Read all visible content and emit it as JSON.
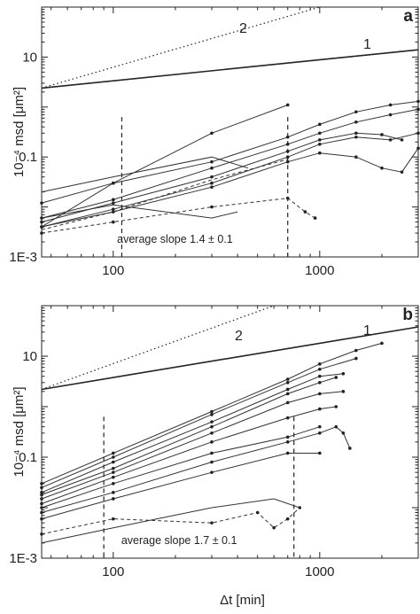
{
  "chart_data": [
    {
      "type": "line",
      "panel_label": "a",
      "title": "",
      "xlabel": "",
      "ylabel": "10⁻⁴ msd [μm²]",
      "x_scale": "log",
      "y_scale": "log",
      "xlim": [
        45,
        3000
      ],
      "ylim": [
        0.001,
        100
      ],
      "x_ticks": [
        {
          "value": 100,
          "label": "100"
        },
        {
          "value": 1000,
          "label": "1000"
        }
      ],
      "y_ticks": [
        {
          "value": 0.001,
          "label": "1E-3"
        },
        {
          "value": 0.1,
          "label": "0.1"
        },
        {
          "value": 10,
          "label": "10"
        }
      ],
      "reference_lines": [
        {
          "label": "1",
          "style": "solid",
          "points": [
            [
              45,
              2.4
            ],
            [
              3000,
              14
            ]
          ]
        },
        {
          "label": "2",
          "style": "dotted",
          "points": [
            [
              45,
              2.4
            ],
            [
              1000,
              100
            ]
          ]
        }
      ],
      "vertical_markers": [
        110,
        700
      ],
      "annotation": "average slope 1.4 ± 0.1",
      "series": [
        {
          "style": "solid",
          "marker": "dot",
          "points": [
            [
              45,
              0.004
            ],
            [
              100,
              0.03
            ],
            [
              300,
              0.3
            ],
            [
              700,
              1.1
            ]
          ]
        },
        {
          "style": "solid",
          "marker": "dot",
          "points": [
            [
              45,
              0.012
            ],
            [
              100,
              0.03
            ],
            [
              300,
              0.08
            ],
            [
              700,
              0.25
            ],
            [
              1000,
              0.45
            ],
            [
              1500,
              0.8
            ],
            [
              2200,
              1.1
            ],
            [
              3000,
              1.3
            ]
          ]
        },
        {
          "style": "solid",
          "marker": "dot",
          "points": [
            [
              45,
              0.006
            ],
            [
              100,
              0.014
            ],
            [
              300,
              0.06
            ],
            [
              700,
              0.18
            ],
            [
              1000,
              0.3
            ],
            [
              1500,
              0.5
            ],
            [
              2200,
              0.7
            ],
            [
              3000,
              0.9
            ]
          ]
        },
        {
          "style": "solid",
          "marker": "dot",
          "points": [
            [
              45,
              0.005
            ],
            [
              100,
              0.012
            ],
            [
              300,
              0.04
            ],
            [
              700,
              0.13
            ],
            [
              1000,
              0.22
            ],
            [
              1500,
              0.3
            ],
            [
              2000,
              0.28
            ],
            [
              2500,
              0.22
            ]
          ]
        },
        {
          "style": "solid",
          "marker": "dot",
          "points": [
            [
              45,
              0.004
            ],
            [
              100,
              0.009
            ],
            [
              300,
              0.03
            ],
            [
              700,
              0.1
            ],
            [
              1000,
              0.18
            ],
            [
              1500,
              0.25
            ],
            [
              2200,
              0.22
            ],
            [
              3000,
              0.3
            ]
          ]
        },
        {
          "style": "solid",
          "marker": "dot",
          "points": [
            [
              45,
              0.004
            ],
            [
              100,
              0.008
            ],
            [
              300,
              0.025
            ],
            [
              700,
              0.08
            ],
            [
              1000,
              0.12
            ],
            [
              1500,
              0.1
            ],
            [
              2000,
              0.06
            ],
            [
              2500,
              0.05
            ],
            [
              3000,
              0.15
            ]
          ]
        },
        {
          "style": "solid",
          "marker": "none",
          "points": [
            [
              45,
              0.02
            ],
            [
              100,
              0.04
            ],
            [
              300,
              0.1
            ],
            [
              450,
              0.06
            ]
          ]
        },
        {
          "style": "solid",
          "marker": "none",
          "points": [
            [
              45,
              0.006
            ],
            [
              100,
              0.011
            ],
            [
              300,
              0.006
            ],
            [
              400,
              0.008
            ]
          ]
        },
        {
          "style": "dashed",
          "marker": "dot",
          "points": [
            [
              45,
              0.003
            ],
            [
              100,
              0.005
            ],
            [
              300,
              0.01
            ],
            [
              700,
              0.015
            ],
            [
              850,
              0.008
            ],
            [
              950,
              0.006
            ]
          ]
        },
        {
          "style": "dashed",
          "marker": "none",
          "points": [
            [
              45,
              0.0035
            ],
            [
              100,
              0.008
            ],
            [
              300,
              0.035
            ],
            [
              700,
              0.09
            ]
          ]
        }
      ]
    },
    {
      "type": "line",
      "panel_label": "b",
      "title": "",
      "xlabel": "Δt [min]",
      "ylabel": "10⁻⁴ msd [μm²]",
      "x_scale": "log",
      "y_scale": "log",
      "xlim": [
        45,
        3000
      ],
      "ylim": [
        0.001,
        100
      ],
      "x_ticks": [
        {
          "value": 100,
          "label": "100"
        },
        {
          "value": 1000,
          "label": "1000"
        }
      ],
      "y_ticks": [
        {
          "value": 0.001,
          "label": "1E-3"
        },
        {
          "value": 0.1,
          "label": "0.1"
        },
        {
          "value": 10,
          "label": "10"
        }
      ],
      "reference_lines": [
        {
          "label": "1",
          "style": "solid",
          "points": [
            [
              45,
              2.2
            ],
            [
              3000,
              38
            ]
          ]
        },
        {
          "label": "2",
          "style": "dotted",
          "points": [
            [
              45,
              2.2
            ],
            [
              600,
              100
            ]
          ]
        }
      ],
      "vertical_markers": [
        90,
        750
      ],
      "annotation": "average slope 1.7 ± 0.1",
      "series": [
        {
          "style": "solid",
          "marker": "dot",
          "points": [
            [
              45,
              0.03
            ],
            [
              100,
              0.12
            ],
            [
              300,
              0.8
            ],
            [
              700,
              3.5
            ],
            [
              1000,
              7
            ],
            [
              1500,
              13
            ],
            [
              2000,
              18
            ]
          ]
        },
        {
          "style": "solid",
          "marker": "dot",
          "points": [
            [
              45,
              0.025
            ],
            [
              100,
              0.1
            ],
            [
              300,
              0.7
            ],
            [
              700,
              3
            ],
            [
              1000,
              5.5
            ],
            [
              1500,
              9
            ]
          ]
        },
        {
          "style": "solid",
          "marker": "dot",
          "points": [
            [
              45,
              0.02
            ],
            [
              100,
              0.08
            ],
            [
              300,
              0.5
            ],
            [
              700,
              2.2
            ],
            [
              1000,
              4
            ],
            [
              1300,
              4.5
            ]
          ]
        },
        {
          "style": "solid",
          "marker": "dot",
          "points": [
            [
              45,
              0.018
            ],
            [
              100,
              0.06
            ],
            [
              300,
              0.4
            ],
            [
              700,
              1.8
            ],
            [
              1000,
              3
            ],
            [
              1200,
              3.8
            ]
          ]
        },
        {
          "style": "solid",
          "marker": "dot",
          "points": [
            [
              45,
              0.015
            ],
            [
              100,
              0.05
            ],
            [
              300,
              0.3
            ],
            [
              700,
              1.2
            ],
            [
              1000,
              1.8
            ],
            [
              1300,
              2
            ]
          ]
        },
        {
          "style": "solid",
          "marker": "dot",
          "points": [
            [
              45,
              0.012
            ],
            [
              100,
              0.04
            ],
            [
              300,
              0.2
            ],
            [
              700,
              0.6
            ],
            [
              1000,
              0.9
            ],
            [
              1200,
              1
            ]
          ]
        },
        {
          "style": "solid",
          "marker": "dot",
          "points": [
            [
              45,
              0.01
            ],
            [
              100,
              0.03
            ],
            [
              300,
              0.12
            ],
            [
              700,
              0.25
            ],
            [
              1000,
              0.4
            ]
          ]
        },
        {
          "style": "solid",
          "marker": "dot",
          "points": [
            [
              45,
              0.008
            ],
            [
              100,
              0.02
            ],
            [
              300,
              0.08
            ],
            [
              700,
              0.2
            ],
            [
              1000,
              0.3
            ],
            [
              1200,
              0.4
            ],
            [
              1300,
              0.3
            ],
            [
              1400,
              0.15
            ]
          ]
        },
        {
          "style": "solid",
          "marker": "dot",
          "points": [
            [
              45,
              0.006
            ],
            [
              100,
              0.015
            ],
            [
              300,
              0.05
            ],
            [
              700,
              0.12
            ],
            [
              1000,
              0.12
            ]
          ]
        },
        {
          "style": "dashed",
          "marker": "dot",
          "points": [
            [
              45,
              0.003
            ],
            [
              100,
              0.006
            ],
            [
              300,
              0.005
            ],
            [
              500,
              0.008
            ],
            [
              600,
              0.004
            ],
            [
              700,
              0.006
            ],
            [
              800,
              0.01
            ]
          ]
        },
        {
          "style": "solid",
          "marker": "none",
          "points": [
            [
              45,
              0.002
            ],
            [
              100,
              0.004
            ],
            [
              300,
              0.01
            ],
            [
              600,
              0.015
            ],
            [
              800,
              0.01
            ]
          ]
        }
      ]
    }
  ]
}
